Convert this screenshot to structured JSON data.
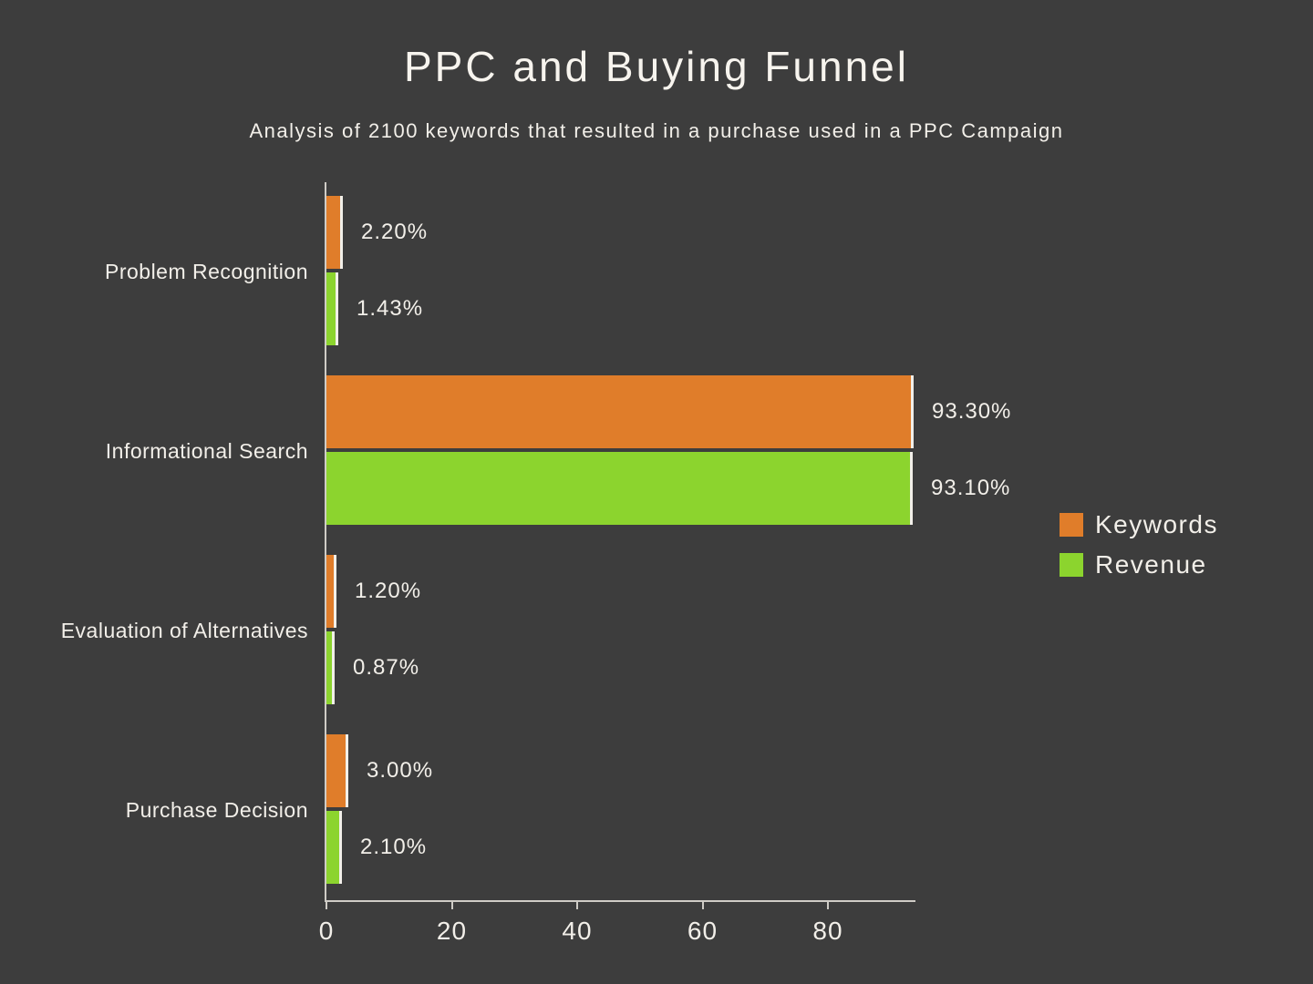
{
  "chart_data": {
    "type": "bar",
    "orientation": "horizontal",
    "title": "PPC and Buying Funnel",
    "subtitle": "Analysis of 2100 keywords that resulted in a purchase used in a PPC Campaign",
    "categories": [
      "Problem Recognition",
      "Informational Search",
      "Evaluation of Alternatives",
      "Purchase Decision"
    ],
    "series": [
      {
        "name": "Keywords",
        "color": "#e07d2a",
        "values": [
          2.2,
          93.3,
          1.2,
          3.0
        ],
        "labels": [
          "2.20%",
          "93.30%",
          "1.20%",
          "3.00%"
        ]
      },
      {
        "name": "Revenue",
        "color": "#8cd42e",
        "values": [
          1.43,
          93.1,
          0.87,
          2.1
        ],
        "labels": [
          "1.43%",
          "93.10%",
          "0.87%",
          "2.10%"
        ]
      }
    ],
    "x_ticks": [
      0,
      20,
      40,
      60,
      80
    ],
    "xlim": [
      0,
      94
    ],
    "grid": false,
    "legend_position": "right",
    "background_color": "#3d3d3d",
    "text_color": "#f2efe9"
  }
}
